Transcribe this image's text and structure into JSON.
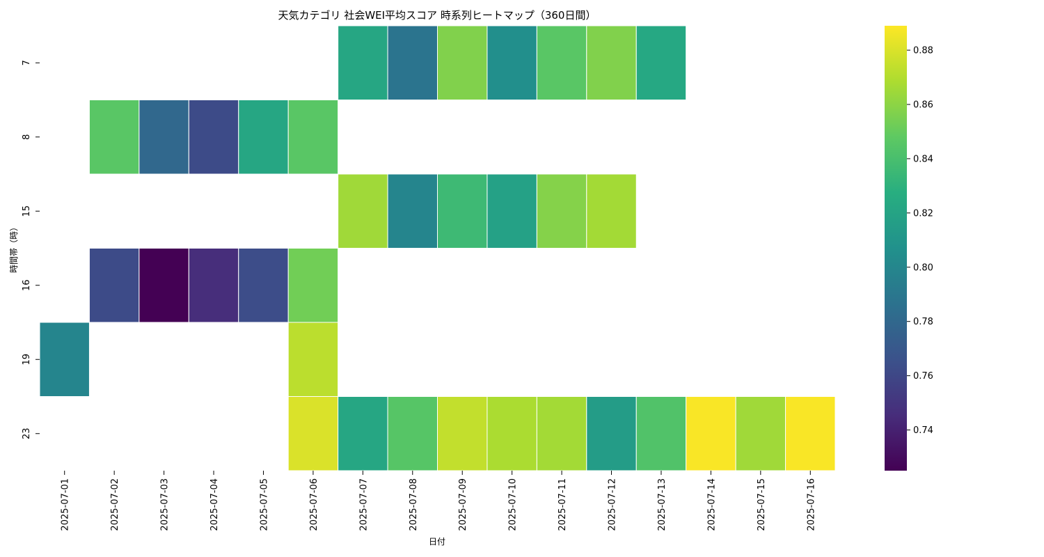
{
  "chart_data": {
    "type": "heatmap",
    "title": "天気カテゴリ 社会WEI平均スコア 時系列ヒートマップ（360日間）",
    "xlabel": "日付",
    "ylabel": "時間帯（時）",
    "x": [
      "2025-07-01",
      "2025-07-02",
      "2025-07-03",
      "2025-07-04",
      "2025-07-05",
      "2025-07-06",
      "2025-07-07",
      "2025-07-08",
      "2025-07-09",
      "2025-07-10",
      "2025-07-11",
      "2025-07-12",
      "2025-07-13",
      "2025-07-14",
      "2025-07-15",
      "2025-07-16"
    ],
    "y": [
      "7",
      "8",
      "15",
      "16",
      "19",
      "23"
    ],
    "values": [
      [
        null,
        null,
        null,
        null,
        null,
        null,
        0.822,
        0.788,
        0.857,
        0.806,
        0.846,
        0.857,
        0.823,
        null,
        null,
        null
      ],
      [
        null,
        0.846,
        0.78,
        0.762,
        0.822,
        0.846,
        null,
        null,
        null,
        null,
        null,
        null,
        null,
        null,
        null,
        null
      ],
      [
        null,
        null,
        null,
        null,
        null,
        null,
        0.865,
        0.799,
        0.836,
        0.818,
        0.858,
        0.866,
        null,
        null,
        null,
        null
      ],
      [
        null,
        0.762,
        0.725,
        0.746,
        0.763,
        0.853,
        null,
        null,
        null,
        null,
        null,
        null,
        null,
        null,
        null,
        null
      ],
      [
        0.799,
        null,
        null,
        null,
        null,
        0.872,
        null,
        null,
        null,
        null,
        null,
        null,
        null,
        null,
        null,
        null
      ],
      [
        null,
        null,
        null,
        null,
        null,
        0.88,
        0.822,
        0.845,
        0.874,
        0.868,
        0.866,
        0.815,
        0.843,
        0.888,
        0.865,
        0.888
      ]
    ],
    "colormap": "viridis",
    "colorbar": {
      "vmin": 0.725,
      "vmax": 0.889,
      "ticks": [
        "0.74",
        "0.76",
        "0.78",
        "0.80",
        "0.82",
        "0.84",
        "0.86",
        "0.88"
      ]
    }
  }
}
